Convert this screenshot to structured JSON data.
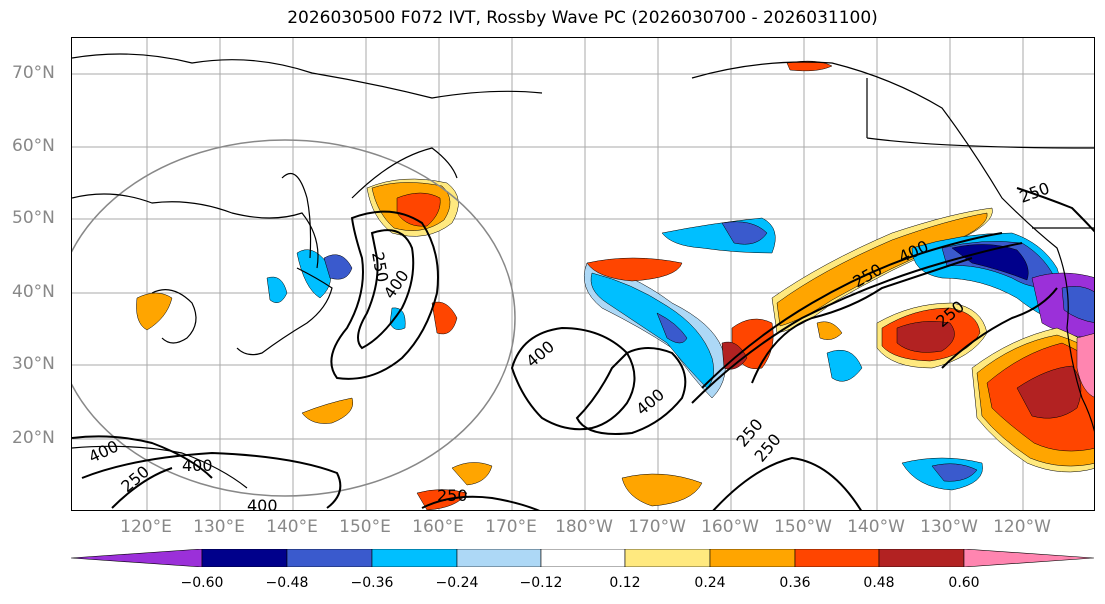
{
  "title": "2026030500 F072 IVT, Rossby Wave PC (2026030700 - 2026031100)",
  "map": {
    "lat_labels": [
      "70°N",
      "60°N",
      "50°N",
      "40°N",
      "30°N",
      "20°N"
    ],
    "lon_labels": [
      "120°E",
      "130°E",
      "140°E",
      "150°E",
      "160°E",
      "170°E",
      "180°W",
      "170°W",
      "160°W",
      "150°W",
      "140°W",
      "130°W",
      "120°W"
    ],
    "contour_labels": [
      "250",
      "400",
      "400",
      "250",
      "400",
      "400",
      "400",
      "250",
      "250",
      "400",
      "250",
      "250",
      "400",
      "250",
      "250"
    ],
    "fill_colors": {
      "neg_strong": "#9b30d9",
      "neg_very": "#00008b",
      "neg_mid": "#3a5acd",
      "neg_light": "#00bfff",
      "neg_pale": "#add8f6",
      "neutral": "#ffffff",
      "pos_pale": "#ffe97f",
      "pos_light": "#ffa500",
      "pos_mid": "#ff4500",
      "pos_strong": "#b22222",
      "pos_extreme": "#ff85b0"
    }
  },
  "colorbar": {
    "ticks": [
      "−0.60",
      "−0.48",
      "−0.36",
      "−0.24",
      "−0.12",
      "0.12",
      "0.24",
      "0.36",
      "0.48",
      "0.60"
    ],
    "colors": [
      "#9b30d9",
      "#00008b",
      "#3a5acd",
      "#00bfff",
      "#add8f6",
      "#ffffff",
      "#ffe97f",
      "#ffa500",
      "#ff4500",
      "#b22222",
      "#ff85b0"
    ]
  }
}
